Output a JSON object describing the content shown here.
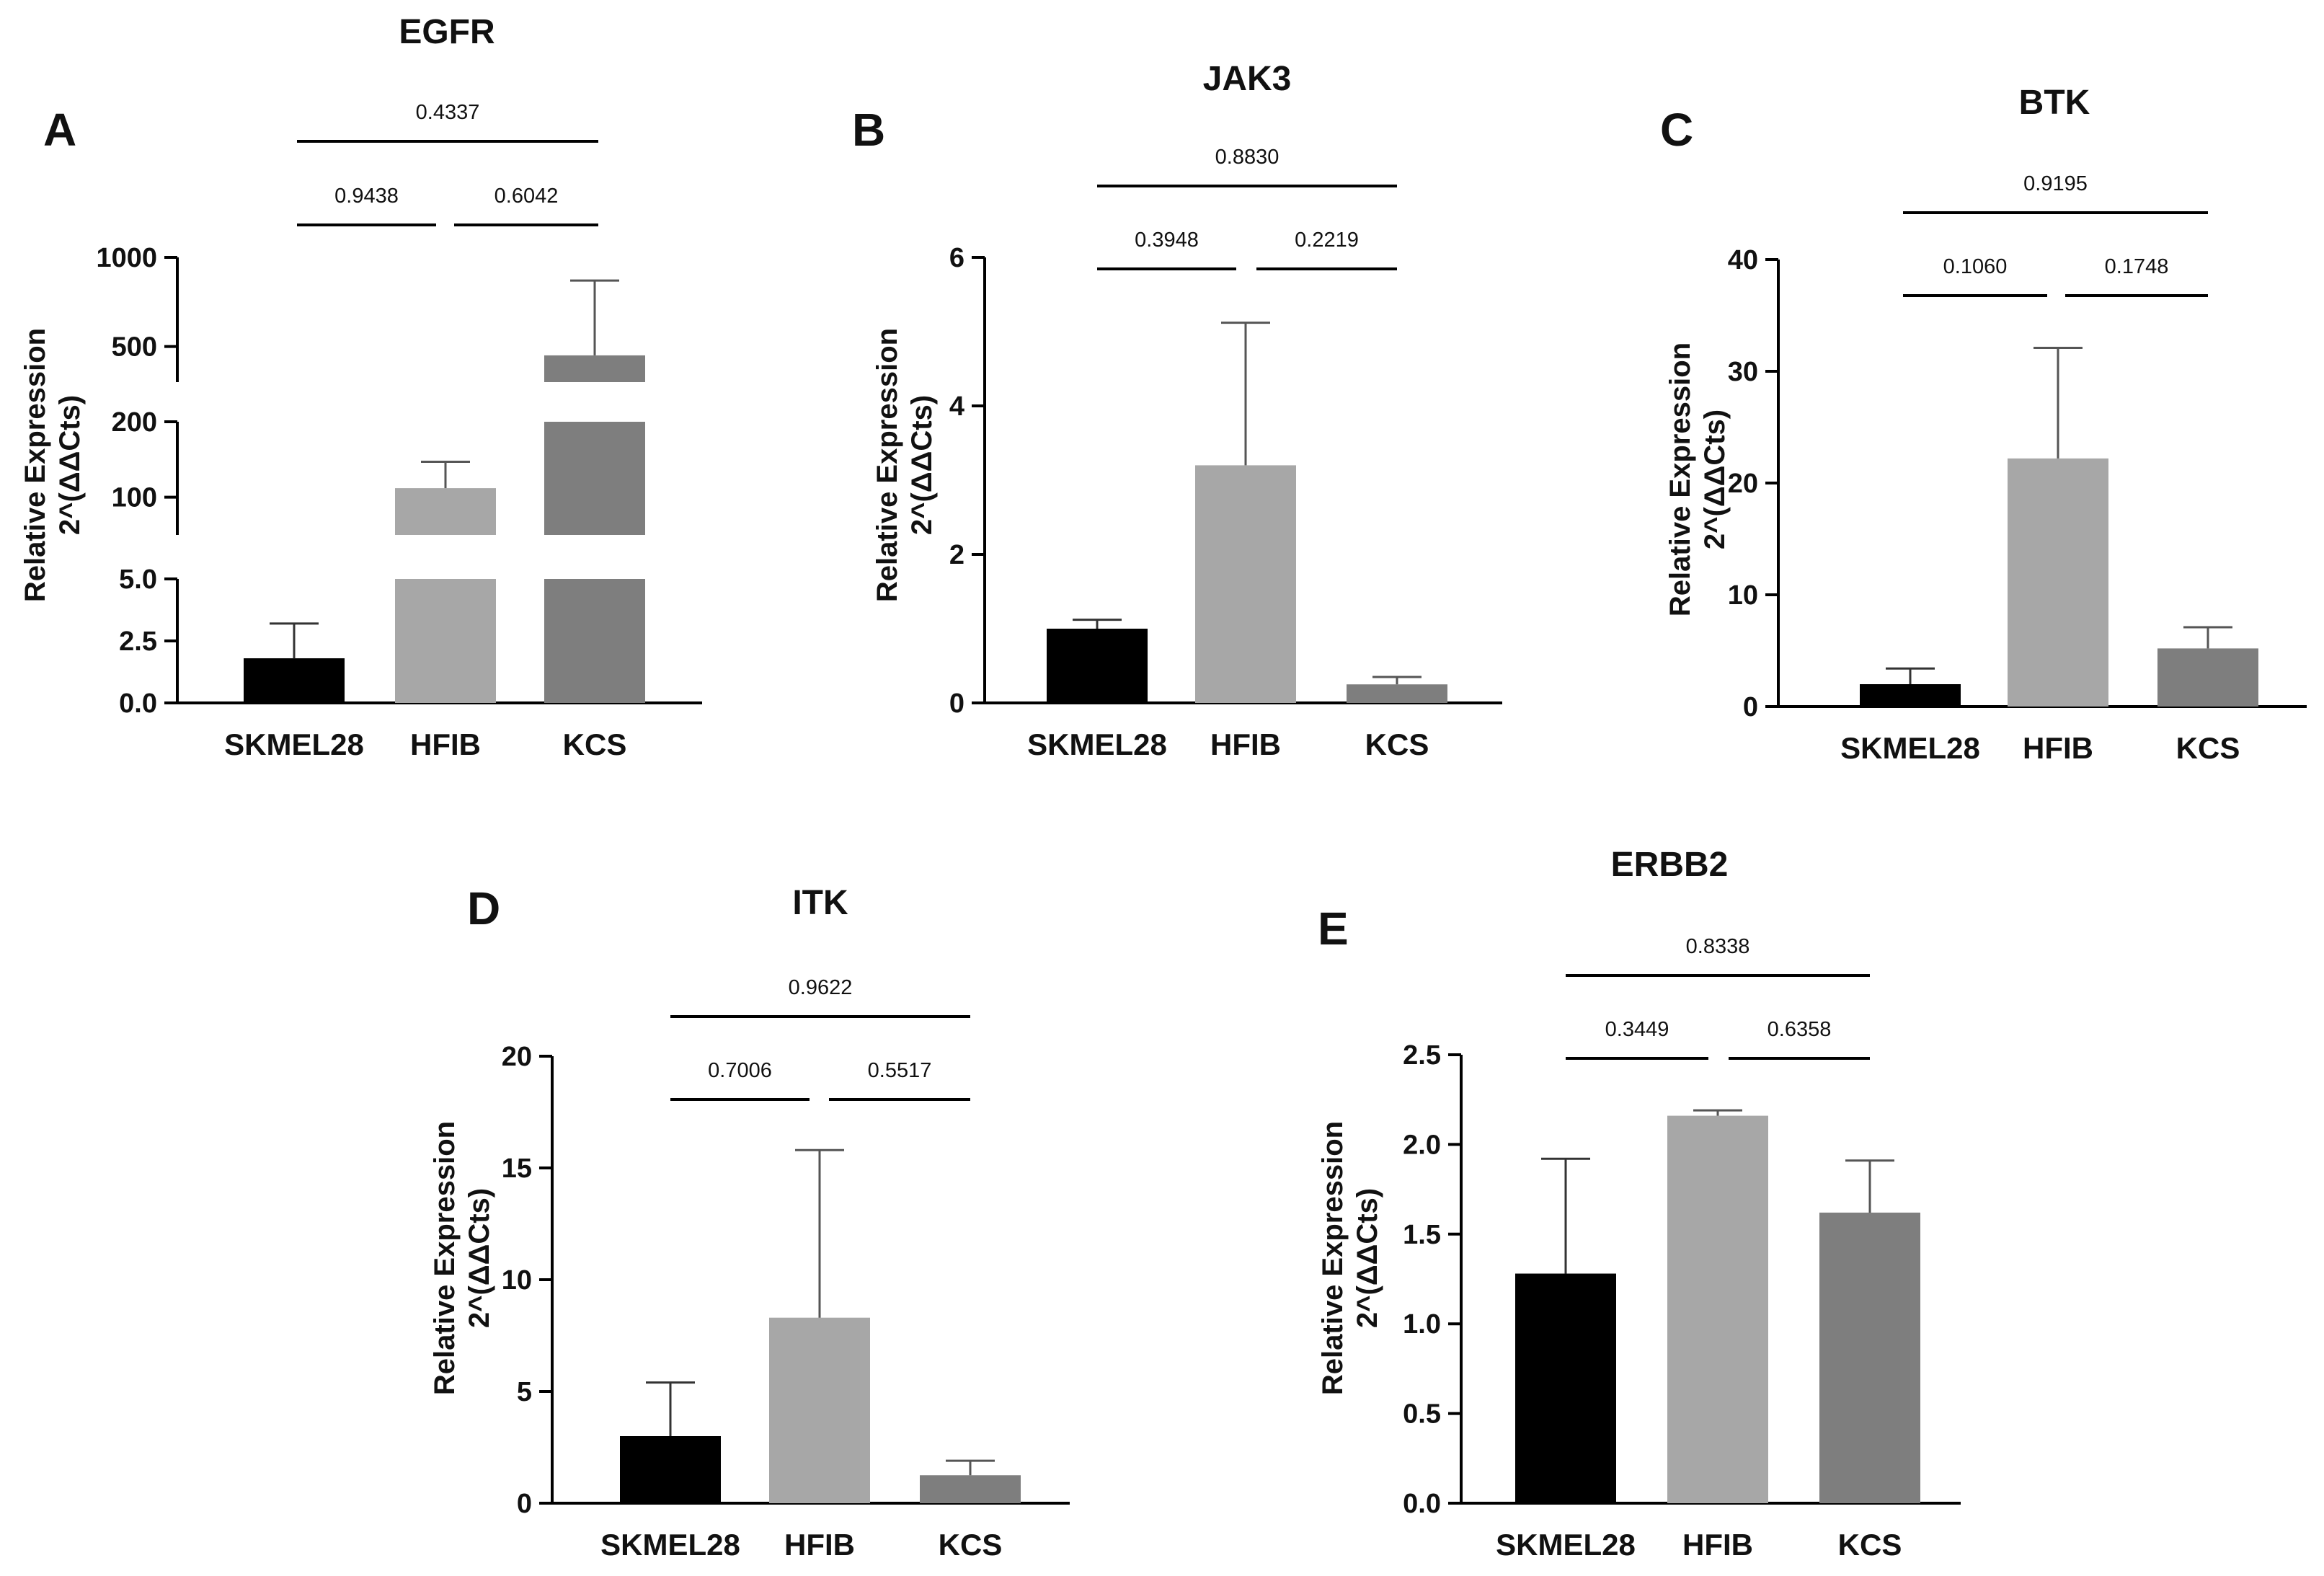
{
  "chart_data": [
    {
      "panel": "A",
      "title": "EGFR",
      "type": "bar",
      "ylabel": [
        "Relative Expression",
        "2^(ΔΔCts)"
      ],
      "categories": [
        "SKMEL28",
        "HFIB",
        "KCS"
      ],
      "values": [
        1.8,
        112,
        450
      ],
      "errors": [
        1.4,
        35,
        420
      ],
      "colors": [
        "#000000",
        "#a7a7a7",
        "#7e7e7e"
      ],
      "axis_segments": [
        {
          "range": [
            0,
            5
          ],
          "ticks": [
            "0.0",
            "2.5",
            "5.0"
          ]
        },
        {
          "range": [
            50,
            200
          ],
          "ticks": [
            "100",
            "200"
          ]
        },
        {
          "range": [
            300,
            1000
          ],
          "ticks": [
            "500",
            "1000"
          ]
        }
      ],
      "comparisons": [
        {
          "groups": [
            "SKMEL28",
            "HFIB"
          ],
          "p": "0.9438"
        },
        {
          "groups": [
            "HFIB",
            "KCS"
          ],
          "p": "0.6042"
        },
        {
          "groups": [
            "SKMEL28",
            "KCS"
          ],
          "p": "0.4337"
        }
      ]
    },
    {
      "panel": "B",
      "title": "JAK3",
      "type": "bar",
      "ylabel": [
        "Relative Expression",
        "2^(ΔΔCts)"
      ],
      "categories": [
        "SKMEL28",
        "HFIB",
        "KCS"
      ],
      "values": [
        1.0,
        3.2,
        0.25
      ],
      "errors": [
        0.12,
        1.92,
        0.1
      ],
      "colors": [
        "#000000",
        "#a7a7a7",
        "#7e7e7e"
      ],
      "ylim": [
        0,
        6
      ],
      "yticks": [
        "0",
        "2",
        "4",
        "6"
      ],
      "comparisons": [
        {
          "groups": [
            "SKMEL28",
            "HFIB"
          ],
          "p": "0.3948"
        },
        {
          "groups": [
            "HFIB",
            "KCS"
          ],
          "p": "0.2219"
        },
        {
          "groups": [
            "SKMEL28",
            "KCS"
          ],
          "p": "0.8830"
        }
      ]
    },
    {
      "panel": "C",
      "title": "BTK",
      "type": "bar",
      "ylabel": [
        "Relative Expression",
        "2^(ΔΔCts)"
      ],
      "categories": [
        "SKMEL28",
        "HFIB",
        "KCS"
      ],
      "values": [
        2.0,
        22.2,
        5.2
      ],
      "errors": [
        1.4,
        9.9,
        1.9
      ],
      "colors": [
        "#000000",
        "#a7a7a7",
        "#7e7e7e"
      ],
      "ylim": [
        0,
        40
      ],
      "yticks": [
        "0",
        "10",
        "20",
        "30",
        "40"
      ],
      "comparisons": [
        {
          "groups": [
            "SKMEL28",
            "HFIB"
          ],
          "p": "0.1060"
        },
        {
          "groups": [
            "HFIB",
            "KCS"
          ],
          "p": "0.1748"
        },
        {
          "groups": [
            "SKMEL28",
            "KCS"
          ],
          "p": "0.9195"
        }
      ]
    },
    {
      "panel": "D",
      "title": "ITK",
      "type": "bar",
      "ylabel": [
        "Relative Expression",
        "2^(ΔΔCts)"
      ],
      "categories": [
        "SKMEL28",
        "HFIB",
        "KCS"
      ],
      "values": [
        3.0,
        8.3,
        1.25
      ],
      "errors": [
        2.4,
        7.5,
        0.65
      ],
      "colors": [
        "#000000",
        "#a7a7a7",
        "#7e7e7e"
      ],
      "ylim": [
        0,
        20
      ],
      "yticks": [
        "0",
        "5",
        "10",
        "15",
        "20"
      ],
      "comparisons": [
        {
          "groups": [
            "SKMEL28",
            "HFIB"
          ],
          "p": "0.7006"
        },
        {
          "groups": [
            "HFIB",
            "KCS"
          ],
          "p": "0.5517"
        },
        {
          "groups": [
            "SKMEL28",
            "KCS"
          ],
          "p": "0.9622"
        }
      ]
    },
    {
      "panel": "E",
      "title": "ERBB2",
      "type": "bar",
      "ylabel": [
        "Relative Expression",
        "2^(ΔΔCts)"
      ],
      "categories": [
        "SKMEL28",
        "HFIB",
        "KCS"
      ],
      "values": [
        1.28,
        2.16,
        1.62
      ],
      "errors": [
        0.64,
        0.03,
        0.29
      ],
      "colors": [
        "#000000",
        "#a7a7a7",
        "#7e7e7e"
      ],
      "ylim": [
        0,
        2.5
      ],
      "yticks": [
        "0.0",
        "0.5",
        "1.0",
        "1.5",
        "2.0",
        "2.5"
      ],
      "comparisons": [
        {
          "groups": [
            "SKMEL28",
            "HFIB"
          ],
          "p": "0.3449"
        },
        {
          "groups": [
            "HFIB",
            "KCS"
          ],
          "p": "0.6358"
        },
        {
          "groups": [
            "SKMEL28",
            "KCS"
          ],
          "p": "0.8338"
        }
      ]
    }
  ]
}
